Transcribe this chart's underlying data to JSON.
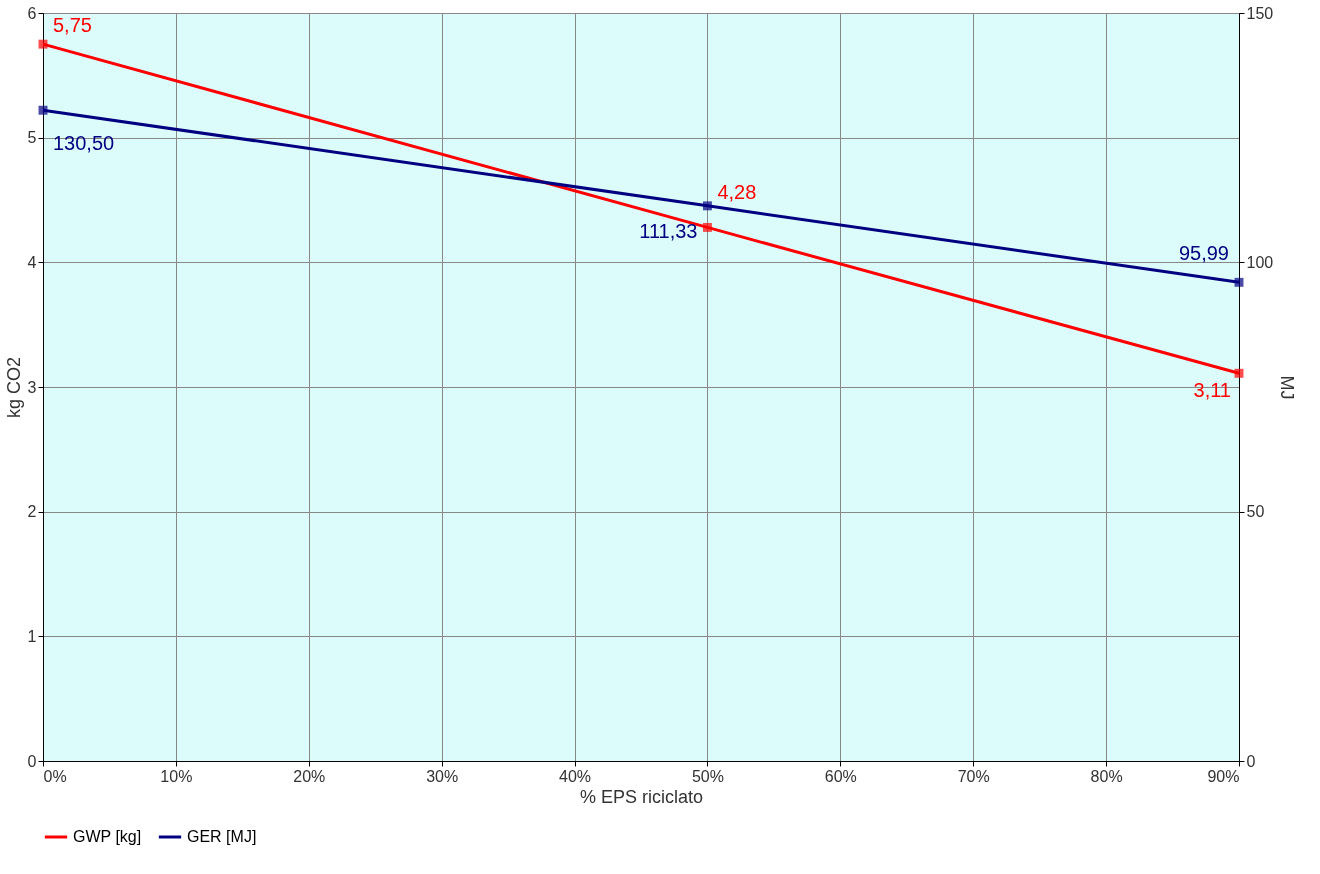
{
  "chart_data": {
    "type": "line",
    "xlabel": "% EPS riciclato",
    "ylabel": "kg CO2",
    "y2label": "MJ",
    "x": [
      0,
      50,
      90
    ],
    "xlim": [
      0,
      90
    ],
    "xticks": [
      {
        "value": 0,
        "label": "0%"
      },
      {
        "value": 10,
        "label": "10%"
      },
      {
        "value": 20,
        "label": "20%"
      },
      {
        "value": 30,
        "label": "30%"
      },
      {
        "value": 40,
        "label": "40%"
      },
      {
        "value": 50,
        "label": "50%"
      },
      {
        "value": 60,
        "label": "60%"
      },
      {
        "value": 70,
        "label": "70%"
      },
      {
        "value": 80,
        "label": "80%"
      },
      {
        "value": 90,
        "label": "90%"
      }
    ],
    "ylim": [
      0,
      6
    ],
    "yticks": [
      0,
      1,
      2,
      3,
      4,
      5,
      6
    ],
    "y2lim": [
      0,
      150
    ],
    "y2ticks": [
      0,
      50,
      100,
      150
    ],
    "series": [
      {
        "name": "GWP [kg]",
        "color": "#ff0000",
        "values": [
          5.75,
          4.28,
          3.11
        ],
        "value_labels": [
          "5,75",
          "4,28",
          "3,11"
        ]
      },
      {
        "name": "GER [MJ]",
        "color": "#000080",
        "axis": "y2",
        "values": [
          130.5,
          111.33,
          95.99
        ],
        "value_labels": [
          "130,50",
          "111,33",
          "95,99"
        ]
      }
    ],
    "grid": true,
    "legend": "bottom",
    "marker": "square",
    "line_style": "solid"
  }
}
